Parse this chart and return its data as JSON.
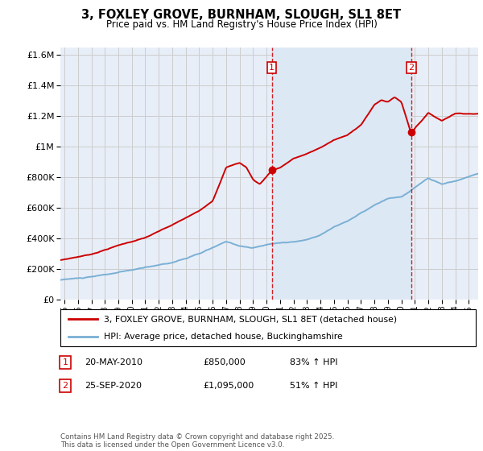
{
  "title": "3, FOXLEY GROVE, BURNHAM, SLOUGH, SL1 8ET",
  "subtitle": "Price paid vs. HM Land Registry's House Price Index (HPI)",
  "legend_label_red": "3, FOXLEY GROVE, BURNHAM, SLOUGH, SL1 8ET (detached house)",
  "legend_label_blue": "HPI: Average price, detached house, Buckinghamshire",
  "annotation1_label": "1",
  "annotation1_date": "20-MAY-2010",
  "annotation1_price": "£850,000",
  "annotation1_hpi": "83% ↑ HPI",
  "annotation1_year": 2010.38,
  "annotation1_value": 850000,
  "annotation2_label": "2",
  "annotation2_date": "25-SEP-2020",
  "annotation2_price": "£1,095,000",
  "annotation2_hpi": "51% ↑ HPI",
  "annotation2_year": 2020.73,
  "annotation2_value": 1095000,
  "copyright": "Contains HM Land Registry data © Crown copyright and database right 2025.\nThis data is licensed under the Open Government Licence v3.0.",
  "ylim": [
    0,
    1650000
  ],
  "yticks": [
    0,
    200000,
    400000,
    600000,
    800000,
    1000000,
    1200000,
    1400000,
    1600000
  ],
  "xlim_start": 1994.7,
  "xlim_end": 2025.7,
  "red_color": "#cc0000",
  "blue_color": "#7ab0d4",
  "shade_color": "#dde8f5",
  "vline_color": "#cc0000",
  "grid_color": "#cccccc",
  "bg_color": "#e8eef8"
}
